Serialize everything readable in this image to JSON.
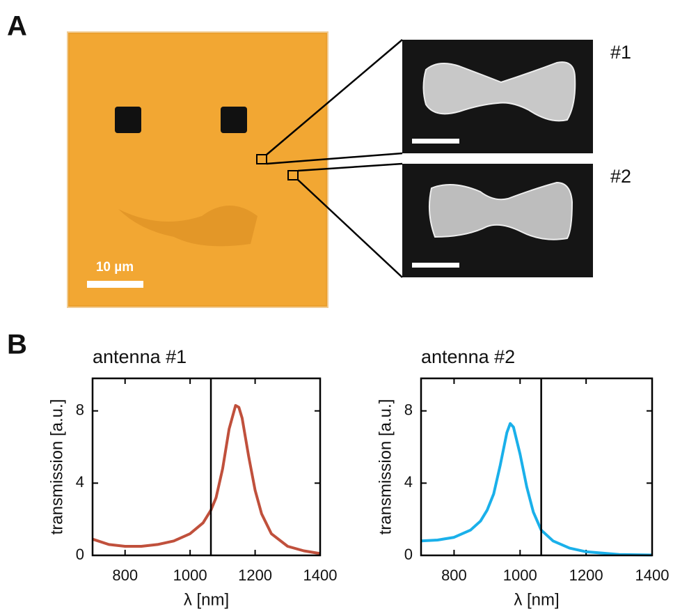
{
  "panel_labels": [
    "A",
    "B"
  ],
  "micrograph": {
    "scale_bar": "10 µm"
  },
  "sem_images": [
    {
      "label": "#1"
    },
    {
      "label": "#2"
    }
  ],
  "chart_data": [
    {
      "type": "line",
      "title": "antenna #1",
      "x_label": "λ [nm]",
      "y_label": "transmission [a.u.]",
      "xlim": [
        700,
        1400
      ],
      "ylim": [
        0,
        9.8
      ],
      "xticks": [
        800,
        1000,
        1200,
        1400
      ],
      "yticks": [
        0,
        4,
        8
      ],
      "vline": 1064,
      "color": "#c0503c",
      "x": [
        700,
        750,
        800,
        850,
        900,
        950,
        1000,
        1040,
        1064,
        1080,
        1100,
        1120,
        1140,
        1150,
        1160,
        1180,
        1200,
        1220,
        1250,
        1300,
        1350,
        1400
      ],
      "values": [
        0.9,
        0.6,
        0.5,
        0.5,
        0.6,
        0.8,
        1.2,
        1.8,
        2.5,
        3.2,
        4.8,
        7.0,
        8.3,
        8.2,
        7.6,
        5.5,
        3.6,
        2.3,
        1.2,
        0.5,
        0.25,
        0.1
      ]
    },
    {
      "type": "line",
      "title": "antenna #2",
      "x_label": "λ [nm]",
      "y_label": "transmission [a.u.]",
      "xlim": [
        700,
        1400
      ],
      "ylim": [
        0,
        9.8
      ],
      "xticks": [
        800,
        1000,
        1200,
        1400
      ],
      "yticks": [
        0,
        4,
        8
      ],
      "vline": 1064,
      "color": "#1ab0ea",
      "x": [
        700,
        750,
        800,
        850,
        880,
        900,
        920,
        940,
        960,
        970,
        980,
        1000,
        1020,
        1040,
        1064,
        1100,
        1150,
        1200,
        1300,
        1400
      ],
      "values": [
        0.8,
        0.85,
        1.0,
        1.4,
        1.9,
        2.5,
        3.4,
        5.0,
        6.8,
        7.3,
        7.1,
        5.6,
        3.8,
        2.4,
        1.4,
        0.8,
        0.4,
        0.2,
        0.05,
        0.02
      ]
    }
  ]
}
